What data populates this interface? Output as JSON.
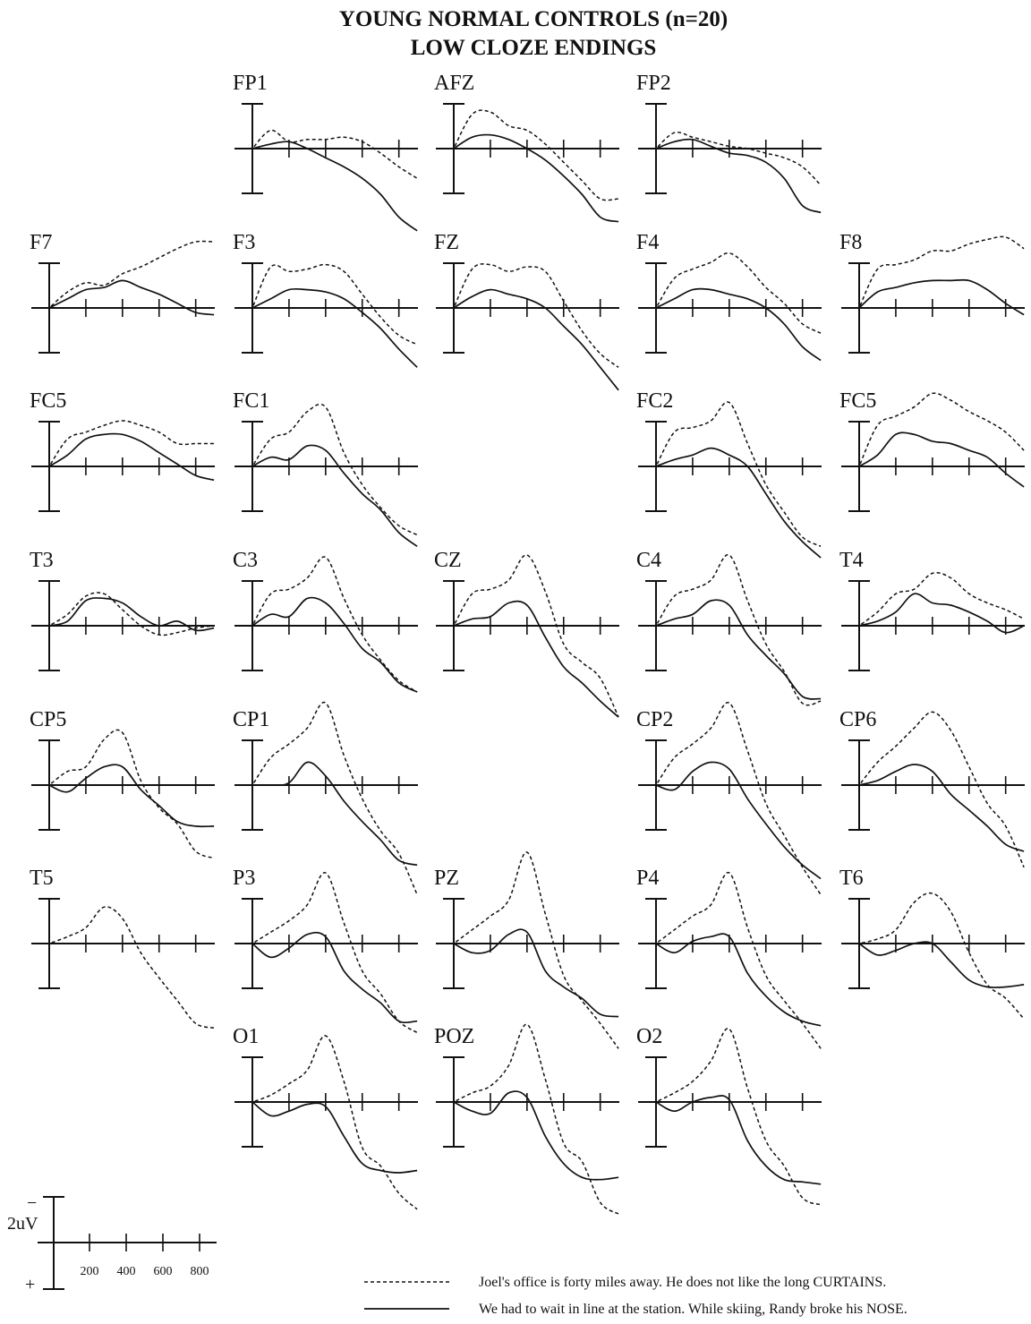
{
  "chart_data": {
    "type": "line",
    "title": "YOUNG NORMAL CONTROLS (n=20)",
    "subtitle": "LOW CLOZE ENDINGS",
    "units": "uV",
    "y_polarity": "negative-up",
    "x": [
      0,
      100,
      200,
      300,
      400,
      500,
      600,
      700,
      800,
      900
    ],
    "scale": {
      "amplitude_label": "2uV",
      "minus_sign": "−",
      "plus_sign": "+",
      "amplitude_uV": 2,
      "time_ticks": [
        "200",
        "400",
        "600",
        "800"
      ]
    },
    "legend": {
      "placement": "bottom-right",
      "dashed": "Joel's office is forty miles away. He does not like the long CURTAINS.",
      "solid": "We had to wait in line at the station. While skiing, Randy broke his NOSE."
    },
    "panels": [
      {
        "name": "FP1",
        "dashed": [
          0,
          0.8,
          0.3,
          0.4,
          0.4,
          0.5,
          0.3,
          -0.2,
          -0.8,
          -1.3
        ],
        "solid": [
          0,
          0.2,
          0.3,
          0,
          -0.4,
          -0.8,
          -1.3,
          -2.0,
          -3.0,
          -3.6
        ]
      },
      {
        "name": "AFZ",
        "dashed": [
          0,
          1.5,
          1.6,
          1.0,
          0.8,
          0.2,
          -0.6,
          -1.4,
          -2.2,
          -2.2
        ],
        "solid": [
          0,
          0.5,
          0.6,
          0.4,
          0,
          -0.5,
          -1.2,
          -2.0,
          -3.0,
          -3.2
        ]
      },
      {
        "name": "FP2",
        "dashed": [
          0,
          0.7,
          0.5,
          0.3,
          0.1,
          0,
          -0.2,
          -0.4,
          -0.8,
          -1.6
        ],
        "solid": [
          0,
          0.3,
          0.4,
          0.1,
          -0.2,
          -0.3,
          -0.6,
          -1.3,
          -2.5,
          -2.8
        ]
      },
      {
        "name": "F7",
        "dashed": [
          0,
          0.7,
          1.1,
          1.0,
          1.5,
          1.8,
          2.2,
          2.6,
          2.9,
          2.9
        ],
        "solid": [
          0,
          0.4,
          0.8,
          0.9,
          1.2,
          0.9,
          0.6,
          0.2,
          -0.2,
          -0.3
        ]
      },
      {
        "name": "F3",
        "dashed": [
          0,
          1.8,
          1.6,
          1.7,
          1.9,
          1.6,
          0.6,
          -0.4,
          -1.2,
          -1.6
        ],
        "solid": [
          0,
          0.4,
          0.8,
          0.8,
          0.7,
          0.4,
          -0.2,
          -0.9,
          -1.8,
          -2.6
        ]
      },
      {
        "name": "FZ",
        "dashed": [
          0,
          1.7,
          1.9,
          1.6,
          1.8,
          1.6,
          0.3,
          -1.0,
          -2.0,
          -2.6
        ],
        "solid": [
          0,
          0.5,
          0.8,
          0.6,
          0.4,
          0,
          -0.8,
          -1.6,
          -2.6,
          -3.6
        ]
      },
      {
        "name": "F4",
        "dashed": [
          0,
          1.3,
          1.7,
          2.0,
          2.4,
          1.8,
          0.9,
          0.2,
          -0.7,
          -1.1
        ],
        "solid": [
          0,
          0.4,
          0.8,
          0.8,
          0.6,
          0.4,
          0,
          -0.7,
          -1.7,
          -2.3
        ]
      },
      {
        "name": "F8",
        "dashed": [
          0,
          1.7,
          1.9,
          2.1,
          2.5,
          2.5,
          2.8,
          3.0,
          3.1,
          2.6
        ],
        "solid": [
          0,
          0.7,
          0.9,
          1.1,
          1.2,
          1.2,
          1.2,
          0.8,
          0.2,
          -0.3
        ]
      },
      {
        "name": "FC5",
        "dashed": [
          0,
          1.2,
          1.5,
          1.8,
          2.0,
          1.8,
          1.5,
          1.0,
          1.0,
          1.0
        ],
        "solid": [
          0,
          0.5,
          1.2,
          1.4,
          1.4,
          1.1,
          0.6,
          0.1,
          -0.4,
          -0.6
        ]
      },
      {
        "name": "FC1",
        "dashed": [
          0,
          1.2,
          1.5,
          2.4,
          2.6,
          0.6,
          -0.8,
          -1.8,
          -2.6,
          -3.0
        ],
        "solid": [
          0,
          0.4,
          0.3,
          0.9,
          0.7,
          -0.3,
          -1.2,
          -1.9,
          -2.9,
          -3.5
        ]
      },
      {
        "name": "FC2",
        "dashed": [
          0,
          1.5,
          1.7,
          2.0,
          2.8,
          1.0,
          -0.8,
          -2.0,
          -3.1,
          -3.5
        ],
        "solid": [
          0,
          0.3,
          0.5,
          0.8,
          0.5,
          0,
          -1.2,
          -2.4,
          -3.3,
          -4.0
        ]
      },
      {
        "name": "FC5",
        "dashed": [
          0,
          1.8,
          2.2,
          2.6,
          3.2,
          2.9,
          2.4,
          2.0,
          1.5,
          0.7
        ],
        "solid": [
          0,
          0.5,
          1.4,
          1.4,
          1.1,
          1.0,
          0.7,
          0.4,
          -0.3,
          -0.9
        ]
      },
      {
        "name": "T3",
        "dashed": [
          0,
          0.5,
          1.3,
          1.4,
          0.7,
          0,
          -0.4,
          -0.3,
          -0.1,
          0
        ],
        "solid": [
          0,
          0.2,
          1.1,
          1.2,
          1.0,
          0.4,
          0,
          0.2,
          -0.2,
          -0.1
        ]
      },
      {
        "name": "C3",
        "dashed": [
          0,
          1.4,
          1.6,
          2.1,
          3.0,
          1.2,
          -0.4,
          -1.5,
          -2.4,
          -2.9
        ],
        "solid": [
          0,
          0.5,
          0.4,
          1.2,
          1.0,
          0.1,
          -1.0,
          -1.6,
          -2.5,
          -2.9
        ]
      },
      {
        "name": "CZ",
        "dashed": [
          0,
          1.4,
          1.6,
          2.0,
          3.1,
          1.5,
          -0.8,
          -1.6,
          -2.3,
          -4.0
        ],
        "solid": [
          0,
          0.3,
          0.4,
          1.0,
          0.9,
          -0.5,
          -1.8,
          -2.5,
          -3.3,
          -4.0
        ]
      },
      {
        "name": "C4",
        "dashed": [
          0,
          1.3,
          1.6,
          2.0,
          3.1,
          1.1,
          -0.8,
          -2.0,
          -3.4,
          -3.3
        ],
        "solid": [
          0,
          0.3,
          0.5,
          1.1,
          0.9,
          -0.4,
          -1.3,
          -2.1,
          -3.1,
          -3.2
        ]
      },
      {
        "name": "T4",
        "dashed": [
          0,
          0.6,
          1.4,
          1.6,
          2.3,
          2.1,
          1.4,
          1.0,
          0.7,
          0.3
        ],
        "solid": [
          0,
          0.2,
          0.6,
          1.4,
          1.0,
          0.9,
          0.6,
          0.2,
          -0.3,
          0
        ]
      },
      {
        "name": "CP5",
        "dashed": [
          0,
          0.6,
          0.8,
          2.0,
          2.3,
          0.2,
          -1.0,
          -1.7,
          -2.9,
          -3.2
        ],
        "solid": [
          0,
          -0.3,
          0.3,
          0.8,
          0.8,
          -0.2,
          -0.9,
          -1.6,
          -1.8,
          -1.8
        ]
      },
      {
        "name": "CP1",
        "dashed": [
          0,
          1.2,
          1.8,
          2.5,
          3.6,
          1.3,
          -0.6,
          -2.0,
          -3.0,
          -4.8
        ],
        "solid": [
          0,
          0,
          0.1,
          1.0,
          0.4,
          -0.7,
          -1.6,
          -2.4,
          -3.3,
          -3.5
        ]
      },
      {
        "name": "CP2",
        "dashed": [
          0,
          1.2,
          1.8,
          2.5,
          3.6,
          1.5,
          -0.8,
          -2.2,
          -3.6,
          -4.8
        ],
        "solid": [
          0,
          -0.2,
          0.6,
          1.0,
          0.7,
          -0.6,
          -1.7,
          -2.7,
          -3.5,
          -4.1
        ]
      },
      {
        "name": "CP6",
        "dashed": [
          0,
          1.0,
          1.7,
          2.5,
          3.2,
          2.4,
          0.8,
          -0.8,
          -1.8,
          -3.6
        ],
        "solid": [
          0,
          0.2,
          0.6,
          0.9,
          0.6,
          -0.4,
          -1.1,
          -1.8,
          -2.6,
          -2.9
        ]
      },
      {
        "name": "T5",
        "dashed": [
          0,
          0.3,
          0.7,
          1.6,
          1.1,
          -0.4,
          -1.5,
          -2.5,
          -3.5,
          -3.7
        ]
      },
      {
        "name": "P3",
        "dashed": [
          0,
          0.5,
          1.0,
          1.7,
          3.1,
          0.9,
          -1.2,
          -2.2,
          -3.4,
          -3.9
        ],
        "solid": [
          0,
          -0.6,
          -0.2,
          0.4,
          0.3,
          -1.2,
          -2.0,
          -2.6,
          -3.4,
          -3.4
        ]
      },
      {
        "name": "PZ",
        "dashed": [
          0,
          0.6,
          1.2,
          1.9,
          4.0,
          1.3,
          -1.4,
          -2.5,
          -3.5,
          -4.6
        ],
        "solid": [
          0,
          -0.4,
          -0.3,
          0.4,
          0.5,
          -1.2,
          -1.9,
          -2.4,
          -3.1,
          -3.2
        ]
      },
      {
        "name": "P4",
        "dashed": [
          0,
          0.6,
          1.2,
          1.7,
          3.1,
          0.7,
          -1.4,
          -2.5,
          -3.5,
          -4.6
        ],
        "solid": [
          0,
          -0.4,
          0.1,
          0.3,
          0.3,
          -1.3,
          -2.3,
          -3.0,
          -3.4,
          -3.6
        ]
      },
      {
        "name": "T6",
        "dashed": [
          0,
          0.2,
          0.6,
          1.8,
          2.2,
          1.4,
          -0.4,
          -1.8,
          -2.4,
          -3.3
        ],
        "solid": [
          0,
          -0.5,
          -0.3,
          0,
          0,
          -0.8,
          -1.6,
          -1.9,
          -1.9,
          -1.8
        ]
      },
      {
        "name": "O1",
        "dashed": [
          0,
          0.3,
          0.8,
          1.4,
          2.9,
          0.9,
          -2.0,
          -2.8,
          -4.0,
          -4.7
        ],
        "solid": [
          0,
          -0.6,
          -0.4,
          -0.1,
          -0.2,
          -1.5,
          -2.7,
          -3.0,
          -3.1,
          -3.0
        ]
      },
      {
        "name": "POZ",
        "dashed": [
          0,
          0.4,
          0.7,
          1.6,
          3.4,
          1.0,
          -1.8,
          -2.6,
          -4.4,
          -4.9
        ],
        "solid": [
          0,
          -0.4,
          -0.5,
          0.4,
          0.2,
          -1.5,
          -2.7,
          -3.3,
          -3.4,
          -3.3
        ]
      },
      {
        "name": "O2",
        "dashed": [
          0,
          0.4,
          0.9,
          1.8,
          3.2,
          0.6,
          -1.7,
          -2.8,
          -4.2,
          -4.5
        ],
        "solid": [
          0,
          -0.4,
          0,
          0.2,
          0.1,
          -1.7,
          -2.8,
          -3.4,
          -3.5,
          -3.6
        ]
      }
    ]
  }
}
